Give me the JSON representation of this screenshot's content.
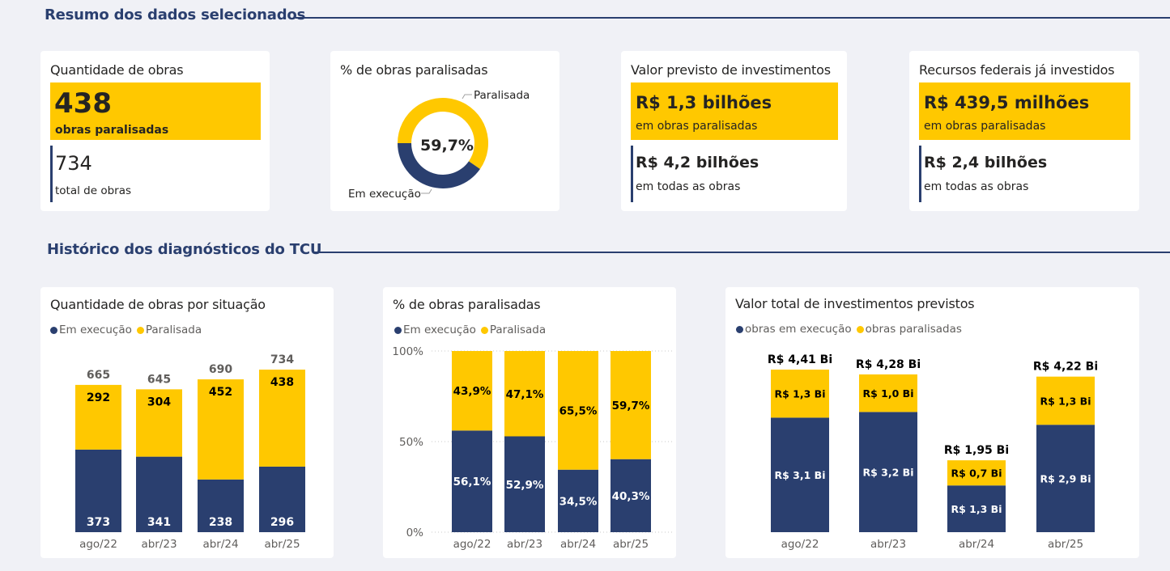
{
  "colors": {
    "execucao": "#2A3F6F",
    "paralisada": "#FFC800",
    "background": "#F0F1F6"
  },
  "sections": {
    "summary_title": "Resumo dos dados selecionados",
    "history_title": "Histórico dos diagnósticos do TCU"
  },
  "kpis": {
    "quantidade": {
      "title": "Quantidade de obras",
      "highlight_value": "438",
      "highlight_label": "obras paralisadas",
      "total_value": "734",
      "total_label": "total de obras"
    },
    "percentual": {
      "title": "% de obras paralisadas",
      "center_label": "59,7%",
      "label_paralisada": "Paralisada",
      "label_execucao": "Em execução",
      "paralisada_pct": 59.7,
      "execucao_pct": 40.3
    },
    "valor_previsto": {
      "title": "Valor previsto de investimentos",
      "highlight_value": "R$ 1,3 bilhões",
      "highlight_label": "em obras paralisadas",
      "total_value": "R$ 4,2 bilhões",
      "total_label": "em todas as obras"
    },
    "recursos_federais": {
      "title": "Recursos federais já investidos",
      "highlight_value": "R$ 439,5 milhões",
      "highlight_label": "em obras paralisadas",
      "total_value": "R$ 2,4 bilhões",
      "total_label": "em todas as obras"
    }
  },
  "chart_data": [
    {
      "type": "bar",
      "stacked": true,
      "title": "Quantidade de obras por situação",
      "legend": [
        "Em execução",
        "Paralisada"
      ],
      "legend_position": "top-left",
      "categories": [
        "ago/22",
        "abr/23",
        "abr/24",
        "abr/25"
      ],
      "series": [
        {
          "name": "Em execução",
          "values": [
            373,
            341,
            238,
            296
          ],
          "labels": [
            "373",
            "341",
            "238",
            "296"
          ]
        },
        {
          "name": "Paralisada",
          "values": [
            292,
            304,
            452,
            438
          ],
          "labels": [
            "292",
            "304",
            "452",
            "438"
          ]
        }
      ],
      "totals": [
        665,
        645,
        690,
        734
      ],
      "total_labels": [
        "665",
        "645",
        "690",
        "734"
      ],
      "ylim": [
        0,
        734
      ]
    },
    {
      "type": "bar",
      "stacked": true,
      "percent": true,
      "title": "% de obras paralisadas",
      "legend": [
        "Em execução",
        "Paralisada"
      ],
      "legend_position": "top-left",
      "categories": [
        "ago/22",
        "abr/23",
        "abr/24",
        "abr/25"
      ],
      "yticks": [
        "0%",
        "50%",
        "100%"
      ],
      "ylim": [
        0,
        100
      ],
      "grid": true,
      "series": [
        {
          "name": "Em execução",
          "values": [
            56.1,
            52.9,
            34.5,
            40.3
          ],
          "labels": [
            "56,1%",
            "52,9%",
            "34,5%",
            "40,3%"
          ]
        },
        {
          "name": "Paralisada",
          "values": [
            43.9,
            47.1,
            65.5,
            59.7
          ],
          "labels": [
            "43,9%",
            "47,1%",
            "65,5%",
            "59,7%"
          ]
        }
      ]
    },
    {
      "type": "bar",
      "stacked": true,
      "title": "Valor total de investimentos previstos",
      "legend": [
        "obras em execução",
        "obras paralisadas"
      ],
      "legend_position": "top-left",
      "categories": [
        "ago/22",
        "abr/23",
        "abr/24",
        "abr/25"
      ],
      "series": [
        {
          "name": "obras em execução",
          "values": [
            3.1,
            3.2,
            1.3,
            2.9
          ],
          "labels": [
            "R$ 3,1 Bi",
            "R$ 3,2 Bi",
            "R$ 1,3 Bi",
            "R$ 2,9 Bi"
          ]
        },
        {
          "name": "obras paralisadas",
          "values": [
            1.3,
            1.0,
            0.7,
            1.3
          ],
          "labels": [
            "R$ 1,3 Bi",
            "R$ 1,0 Bi",
            "R$ 0,7 Bi",
            "R$ 1,3 Bi"
          ]
        }
      ],
      "totals": [
        4.41,
        4.28,
        1.95,
        4.22
      ],
      "total_labels": [
        "R$ 4,41 Bi",
        "R$ 4,28 Bi",
        "R$ 1,95 Bi",
        "R$ 4,22 Bi"
      ],
      "unit": "R$ bilhões"
    }
  ]
}
